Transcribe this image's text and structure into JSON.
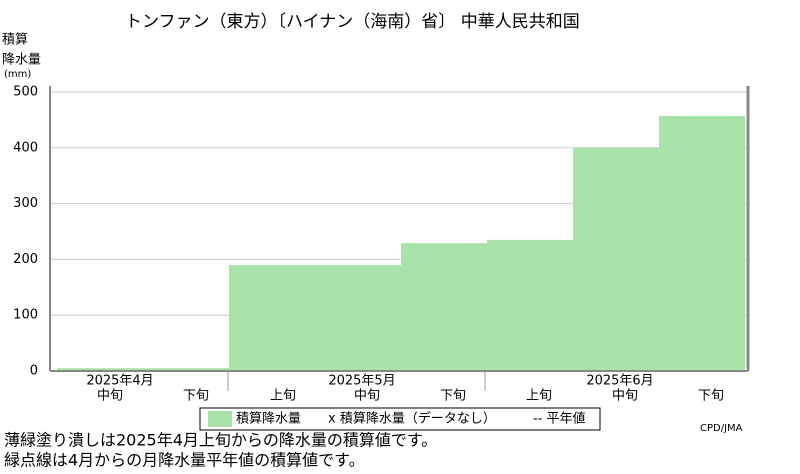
{
  "chart_data": {
    "type": "bar",
    "title": "トンファン（東方）〔ハイナン（海南）省〕 中華人民共和国",
    "y_label": [
      "積算",
      "降水量",
      "(mm)"
    ],
    "categories": [
      "中旬",
      "下旬",
      "上旬",
      "中旬",
      "下旬",
      "上旬",
      "中旬",
      "下旬"
    ],
    "months": [
      "2025年4月",
      "2025年5月",
      "2025年6月"
    ],
    "values": [
      5,
      5,
      190,
      190,
      229,
      235,
      400,
      457
    ],
    "color": "#aae3aa",
    "ylim": [
      0,
      500
    ],
    "yticks": [
      0,
      100,
      200,
      300,
      400,
      500
    ],
    "grid": true,
    "legend": [
      "積算降水量",
      "x 積算降水量（データなし）",
      "-- 平年値"
    ],
    "credit": "CPD/JMA",
    "notes": [
      "薄緑塗り潰しは2025年4月上旬からの降水量の積算値です。",
      "緑点線は4月からの月降水量平年値の積算値です。"
    ]
  }
}
